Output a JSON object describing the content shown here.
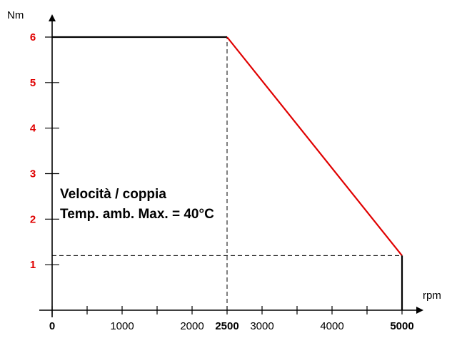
{
  "chart_data": {
    "type": "line",
    "xlabel": "rpm",
    "ylabel": "Nm",
    "xlim": [
      0,
      5000
    ],
    "ylim": [
      0,
      6
    ],
    "grid": false,
    "legend": "none",
    "x_ticks": [
      {
        "value": 0,
        "label": "0",
        "emphasis": true
      },
      {
        "value": 1000,
        "label": "1000",
        "emphasis": false
      },
      {
        "value": 2000,
        "label": "2000",
        "emphasis": false
      },
      {
        "value": 2500,
        "label": "2500",
        "emphasis": true
      },
      {
        "value": 3000,
        "label": "3000",
        "emphasis": false
      },
      {
        "value": 4000,
        "label": "4000",
        "emphasis": false
      },
      {
        "value": 5000,
        "label": "5000",
        "emphasis": true
      }
    ],
    "x_minor_ticks": [
      500,
      1500,
      3500,
      4500
    ],
    "y_ticks": [
      {
        "value": 1,
        "label": "1"
      },
      {
        "value": 2,
        "label": "2"
      },
      {
        "value": 3,
        "label": "3"
      },
      {
        "value": 4,
        "label": "4"
      },
      {
        "value": 5,
        "label": "5"
      },
      {
        "value": 6,
        "label": "6"
      }
    ],
    "series": [
      {
        "constant_segment": [
          [
            0,
            6
          ],
          [
            2500,
            6
          ]
        ],
        "derating_segment": [
          [
            2500,
            6
          ],
          [
            5000,
            1.2
          ]
        ],
        "end_drop": [
          [
            5000,
            1.2
          ],
          [
            5000,
            0
          ]
        ]
      }
    ],
    "reference_lines": [
      {
        "orientation": "vertical",
        "x": 2500,
        "y_from": 0,
        "y_to": 6
      },
      {
        "orientation": "horizontal",
        "y": 1.2,
        "x_from": 0,
        "x_to": 5000
      }
    ],
    "annotation": {
      "lines": [
        "Velocità / coppia",
        "Temp. amb. Max. = 40°C"
      ]
    },
    "colors": {
      "axis": "#000000",
      "curve_constant": "#000000",
      "curve_derating": "#e00000",
      "y_tick_labels": "#e00000",
      "x_tick_labels": "#000000"
    }
  }
}
